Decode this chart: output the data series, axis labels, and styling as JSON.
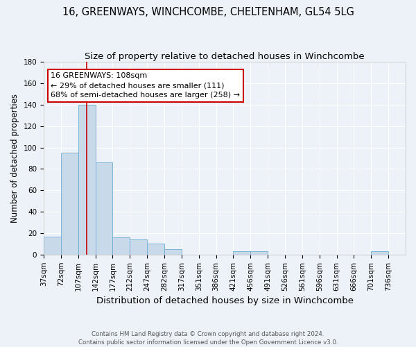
{
  "title1": "16, GREENWAYS, WINCHCOMBE, CHELTENHAM, GL54 5LG",
  "title2": "Size of property relative to detached houses in Winchcombe",
  "xlabel": "Distribution of detached houses by size in Winchcombe",
  "ylabel": "Number of detached properties",
  "footnote": "Contains HM Land Registry data © Crown copyright and database right 2024.\nContains public sector information licensed under the Open Government Licence v3.0.",
  "bin_labels": [
    "37sqm",
    "72sqm",
    "107sqm",
    "142sqm",
    "177sqm",
    "212sqm",
    "247sqm",
    "282sqm",
    "317sqm",
    "351sqm",
    "386sqm",
    "421sqm",
    "456sqm",
    "491sqm",
    "526sqm",
    "561sqm",
    "596sqm",
    "631sqm",
    "666sqm",
    "701sqm",
    "736sqm"
  ],
  "bar_heights": [
    17,
    95,
    140,
    86,
    16,
    14,
    10,
    5,
    0,
    0,
    0,
    3,
    3,
    0,
    0,
    0,
    0,
    0,
    0,
    3,
    0
  ],
  "n_bins": 21,
  "bar_color": "#c8d9ea",
  "bar_edge_color": "#6aadd5",
  "property_size_bin": 2,
  "vline_color": "#cc0000",
  "annotation_line1": "16 GREENWAYS: 108sqm",
  "annotation_line2": "← 29% of detached houses are smaller (111)",
  "annotation_line3": "68% of semi-detached houses are larger (258) →",
  "annotation_box_edgecolor": "#cc0000",
  "ylim": [
    0,
    180
  ],
  "yticks": [
    0,
    20,
    40,
    60,
    80,
    100,
    120,
    140,
    160,
    180
  ],
  "background_color": "#edf2f8",
  "grid_color": "#ffffff",
  "title1_fontsize": 10.5,
  "title2_fontsize": 9.5,
  "xlabel_fontsize": 9.5,
  "ylabel_fontsize": 8.5,
  "tick_fontsize": 7.5,
  "annotation_fontsize": 8
}
